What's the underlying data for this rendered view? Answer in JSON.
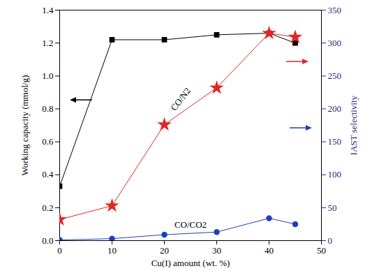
{
  "chart_data": {
    "type": "line",
    "x_label": "Cu(I) amount (wt. %)",
    "y_label": "Working capacity (mmol/g)",
    "y2_label": "IAST selectivity",
    "x": [
      0,
      10,
      20,
      30,
      40,
      45
    ],
    "xlim": [
      0,
      50
    ],
    "xticks": [
      0,
      10,
      20,
      30,
      40,
      50
    ],
    "ylim": [
      0,
      1.4
    ],
    "yticks": [
      {
        "value": 0,
        "label": "0.0"
      },
      0.2,
      0.4,
      0.6,
      0.8,
      {
        "value": 1,
        "label": "1.0"
      },
      1.2,
      1.4
    ],
    "y2lim": [
      0,
      350
    ],
    "y2ticks": [
      0,
      50,
      100,
      150,
      200,
      250,
      300,
      350
    ],
    "grid": false,
    "series": [
      {
        "color": "#000000",
        "marker": "square",
        "values": [
          0.33,
          1.22,
          1.22,
          1.25,
          1.26,
          1.2
        ]
      },
      {
        "name": "CO/N2",
        "color": "#e02828",
        "marker": "star",
        "axis": "y2",
        "values": [
          32,
          53,
          176,
          232,
          315,
          309
        ]
      },
      {
        "name": "CO/CO2",
        "color": "#1f3fbf",
        "marker": "circle",
        "axis": "y2",
        "values": [
          1,
          3,
          9,
          13,
          34,
          25
        ]
      }
    ]
  }
}
